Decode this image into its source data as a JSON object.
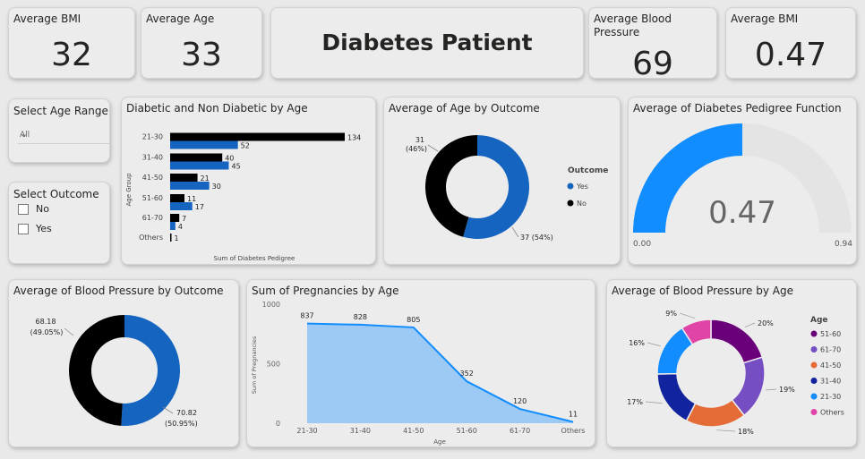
{
  "kpis": {
    "bmi": {
      "title": "Average BMI",
      "value": "32"
    },
    "age": {
      "title": "Average Age",
      "value": "33"
    },
    "dashboard_title": "Diabetes Patient",
    "bp": {
      "title": "Average Blood Pressure",
      "value": "69"
    },
    "bmi2": {
      "title": "Average BMI",
      "value": "0.47"
    }
  },
  "slicers": {
    "age_range": {
      "title": "Select Age Range",
      "value": "All"
    },
    "outcome": {
      "title": "Select Outcome",
      "options": [
        "No",
        "Yes"
      ]
    }
  },
  "colors": {
    "yes": "#1565c0",
    "no": "#000000",
    "gauge": "#118dff",
    "area": "#9ccaf5",
    "area_line": "#118dff"
  },
  "chart_data": [
    {
      "type": "bar",
      "title": "Diabetic and Non Diabetic by Age",
      "ylabel": "Age Group",
      "xlabel": "Sum of Diabetes Pedigree",
      "categories": [
        "21-30",
        "31-40",
        "41-50",
        "51-60",
        "61-70",
        "Others"
      ],
      "series": [
        {
          "values": [
            134,
            40,
            21,
            11,
            7,
            1
          ],
          "color": "#000000"
        },
        {
          "values": [
            52,
            45,
            30,
            17,
            4,
            null
          ],
          "color": "#1565c0"
        }
      ]
    },
    {
      "type": "pie",
      "title": "Average of Age by Outcome",
      "legend_title": "Outcome",
      "slices": [
        {
          "name": "Yes",
          "value": 37,
          "label": "37 (54%)",
          "color": "#1565c0"
        },
        {
          "name": "No",
          "value": 31,
          "label_line1": "31",
          "label_line2": "(46%)",
          "color": "#000000"
        }
      ]
    },
    {
      "type": "gauge",
      "title": "Average of Diabetes Pedigree Function",
      "value": 0.47,
      "value_label": "0.47",
      "min_label": "0.00",
      "max_label": "0.94",
      "min": 0,
      "max": 0.94
    },
    {
      "type": "pie",
      "title": "Average of Blood Pressure by Outcome",
      "slices": [
        {
          "name": "Yes",
          "value": 70.82,
          "label_line1": "70.82",
          "label_line2": "(50.95%)",
          "color": "#1565c0"
        },
        {
          "name": "No",
          "value": 68.18,
          "label_line1": "68.18",
          "label_line2": "(49.05%)",
          "color": "#000000"
        }
      ]
    },
    {
      "type": "area",
      "title": "Sum of Pregnancies by Age",
      "xlabel": "Age",
      "ylabel": "Sum of Pregnancies",
      "categories": [
        "21-30",
        "31-40",
        "41-50",
        "51-60",
        "61-70",
        "Others"
      ],
      "values": [
        837,
        828,
        805,
        352,
        120,
        11
      ],
      "yticks": [
        "0",
        "500",
        "1000"
      ],
      "ylim": [
        0,
        1000
      ]
    },
    {
      "type": "pie",
      "title": "Average of Blood Pressure by Age",
      "legend_title": "Age",
      "slices": [
        {
          "name": "51-60",
          "value": 20,
          "label": "20%",
          "color": "#6b007b"
        },
        {
          "name": "61-70",
          "value": 19,
          "label": "19%",
          "color": "#744ec2"
        },
        {
          "name": "41-50",
          "value": 18,
          "label": "18%",
          "color": "#e66c37"
        },
        {
          "name": "31-40",
          "value": 17,
          "label": "17%",
          "color": "#12239e"
        },
        {
          "name": "21-30",
          "value": 16,
          "label": "16%",
          "color": "#118dff"
        },
        {
          "name": "Others",
          "value": 9,
          "label": "9%",
          "color": "#e044a7"
        }
      ]
    }
  ]
}
